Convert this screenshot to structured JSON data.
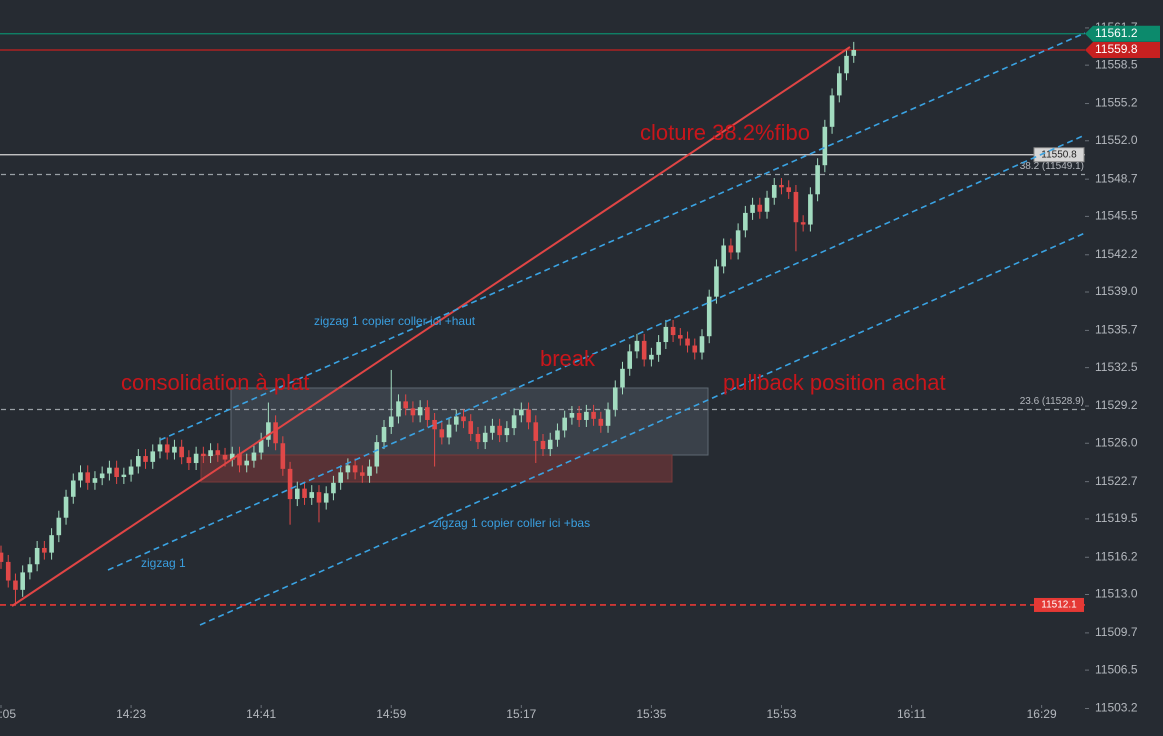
{
  "chart_data": {
    "type": "candlestick",
    "x": [
      "14:05",
      "14:06",
      "14:07",
      "14:08",
      "14:09",
      "14:10",
      "14:11",
      "14:12",
      "14:13",
      "14:14",
      "14:15",
      "14:16",
      "14:17",
      "14:18",
      "14:19",
      "14:20",
      "14:21",
      "14:22",
      "14:23",
      "14:24",
      "14:25",
      "14:26",
      "14:27",
      "14:28",
      "14:29",
      "14:30",
      "14:31",
      "14:32",
      "14:33",
      "14:34",
      "14:35",
      "14:36",
      "14:37",
      "14:38",
      "14:39",
      "14:40",
      "14:41",
      "14:42",
      "14:43",
      "14:44",
      "14:45",
      "14:46",
      "14:47",
      "14:48",
      "14:49",
      "14:50",
      "14:51",
      "14:52",
      "14:53",
      "14:54",
      "14:55",
      "14:56",
      "14:57",
      "14:58",
      "14:59",
      "15:00",
      "15:01",
      "15:02",
      "15:03",
      "15:04",
      "15:05",
      "15:06",
      "15:07",
      "15:08",
      "15:09",
      "15:10",
      "15:11",
      "15:12",
      "15:13",
      "15:14",
      "15:15",
      "15:16",
      "15:17",
      "15:18",
      "15:19",
      "15:20",
      "15:21",
      "15:22",
      "15:23",
      "15:24",
      "15:25",
      "15:26",
      "15:27",
      "15:28",
      "15:29",
      "15:30",
      "15:31",
      "15:32",
      "15:33",
      "15:34",
      "15:35",
      "15:36",
      "15:37",
      "15:38",
      "15:39",
      "15:40",
      "15:41",
      "15:42",
      "15:43",
      "15:44",
      "15:45",
      "15:46",
      "15:47",
      "15:48",
      "15:49",
      "15:50",
      "15:51",
      "15:52",
      "15:53",
      "15:54",
      "15:55",
      "15:56",
      "15:57",
      "15:58",
      "15:59",
      "16:00",
      "16:01",
      "16:02",
      "16:03"
    ],
    "open": [
      11516.6,
      11515.8,
      11514.2,
      11513.4,
      11514.9,
      11515.6,
      11517.0,
      11516.6,
      11518.1,
      11519.6,
      11521.4,
      11522.8,
      11523.5,
      11522.6,
      11523.0,
      11523.4,
      11523.9,
      11523.1,
      11523.3,
      11524.0,
      11524.9,
      11524.4,
      11525.3,
      11525.9,
      11525.2,
      11525.7,
      11524.8,
      11524.3,
      11525.1,
      11524.9,
      11525.4,
      11525.0,
      11524.6,
      11525.1,
      11524.1,
      11524.5,
      11525.2,
      11526.3,
      11527.8,
      11526.0,
      11523.8,
      11521.2,
      11522.1,
      11521.3,
      11521.8,
      11520.9,
      11521.7,
      11522.6,
      11523.5,
      11524.1,
      11523.5,
      11523.2,
      11524.0,
      11526.1,
      11527.4,
      11528.3,
      11529.6,
      11529.0,
      11528.4,
      11529.1,
      11528.0,
      11527.2,
      11526.5,
      11527.6,
      11528.3,
      11527.9,
      11526.8,
      11526.1,
      11526.9,
      11527.5,
      11526.7,
      11527.3,
      11528.4,
      11528.9,
      11527.8,
      11526.2,
      11525.5,
      11526.3,
      11527.1,
      11528.2,
      11528.6,
      11528.0,
      11528.7,
      11528.1,
      11527.5,
      11528.9,
      11530.8,
      11532.4,
      11533.9,
      11534.8,
      11533.2,
      11533.6,
      11534.7,
      11536.0,
      11535.3,
      11535.0,
      11534.4,
      11533.8,
      11535.2,
      11538.6,
      11541.2,
      11543.0,
      11542.4,
      11544.3,
      11545.8,
      11546.5,
      11545.9,
      11547.1,
      11548.2,
      11548.0,
      11547.6,
      11545.0,
      11544.8,
      11547.4,
      11549.9,
      11553.2,
      11555.9,
      11557.8,
      11559.3
    ],
    "high": [
      11517.2,
      11516.4,
      11514.8,
      11515.5,
      11516.2,
      11517.6,
      11517.6,
      11518.7,
      11520.2,
      11522.0,
      11523.4,
      11524.1,
      11524.1,
      11523.6,
      11524.0,
      11524.5,
      11524.5,
      11523.9,
      11524.6,
      11525.5,
      11525.5,
      11525.9,
      11526.5,
      11526.5,
      11526.3,
      11526.3,
      11525.4,
      11525.7,
      11525.7,
      11526.0,
      11526.0,
      11525.6,
      11525.7,
      11525.7,
      11525.1,
      11525.8,
      11526.9,
      11529.5,
      11528.4,
      11526.6,
      11524.4,
      11522.7,
      11522.7,
      11522.4,
      11522.4,
      11522.3,
      11523.2,
      11524.1,
      11524.7,
      11524.7,
      11524.1,
      11524.6,
      11526.7,
      11528.0,
      11532.3,
      11530.2,
      11530.2,
      11529.6,
      11529.7,
      11529.7,
      11528.6,
      11527.8,
      11528.2,
      11528.9,
      11528.9,
      11528.5,
      11527.4,
      11527.5,
      11528.1,
      11528.1,
      11527.9,
      11529.0,
      11529.5,
      11529.5,
      11528.4,
      11526.8,
      11526.9,
      11527.7,
      11528.8,
      11529.2,
      11529.2,
      11529.3,
      11529.3,
      11528.7,
      11529.5,
      11531.4,
      11533.0,
      11534.5,
      11535.4,
      11535.4,
      11534.2,
      11535.3,
      11536.6,
      11536.6,
      11535.9,
      11535.6,
      11535.0,
      11535.8,
      11539.2,
      11541.8,
      11543.6,
      11543.6,
      11544.9,
      11546.4,
      11547.1,
      11547.1,
      11547.7,
      11548.8,
      11548.8,
      11548.6,
      11548.2,
      11545.6,
      11548.0,
      11550.5,
      11553.8,
      11556.5,
      11558.4,
      11559.9,
      11560.5
    ],
    "low": [
      11515.2,
      11513.6,
      11512.1,
      11512.8,
      11514.3,
      11515.0,
      11516.0,
      11516.0,
      11517.5,
      11519.0,
      11520.8,
      11522.2,
      11522.0,
      11522.0,
      11522.4,
      11522.8,
      11522.5,
      11522.5,
      11522.7,
      11523.4,
      11523.8,
      11523.8,
      11524.7,
      11524.6,
      11524.6,
      11524.2,
      11523.7,
      11523.7,
      11524.3,
      11524.3,
      11524.4,
      11524.0,
      11524.0,
      11523.5,
      11523.5,
      11523.9,
      11524.6,
      11525.7,
      11525.4,
      11523.2,
      11519.0,
      11520.6,
      11520.7,
      11520.7,
      11519.2,
      11520.3,
      11521.1,
      11522.0,
      11522.9,
      11522.9,
      11522.6,
      11522.6,
      11523.4,
      11525.5,
      11526.8,
      11527.7,
      11528.4,
      11527.8,
      11527.8,
      11527.4,
      11524.0,
      11525.9,
      11525.9,
      11527.0,
      11527.3,
      11526.2,
      11525.5,
      11525.5,
      11526.3,
      11526.1,
      11526.1,
      11526.7,
      11527.8,
      11527.2,
      11524.3,
      11524.9,
      11524.9,
      11525.7,
      11526.5,
      11527.6,
      11527.4,
      11527.4,
      11527.5,
      11526.9,
      11526.9,
      11528.3,
      11530.2,
      11531.8,
      11533.3,
      11532.6,
      11532.6,
      11533.0,
      11534.1,
      11534.7,
      11534.4,
      11533.8,
      11533.2,
      11533.2,
      11534.6,
      11538.0,
      11540.6,
      11541.8,
      11541.8,
      11543.7,
      11545.2,
      11545.3,
      11545.3,
      11546.5,
      11547.4,
      11547.0,
      11542.5,
      11544.2,
      11544.2,
      11546.8,
      11549.3,
      11552.6,
      11555.3,
      11557.2,
      11558.7
    ],
    "close": [
      11515.8,
      11514.2,
      11513.4,
      11514.9,
      11515.6,
      11517.0,
      11516.6,
      11518.1,
      11519.6,
      11521.4,
      11522.8,
      11523.5,
      11522.6,
      11523.0,
      11523.4,
      11523.9,
      11523.1,
      11523.3,
      11524.0,
      11524.9,
      11524.4,
      11525.3,
      11525.9,
      11525.2,
      11525.7,
      11524.8,
      11524.3,
      11525.1,
      11524.9,
      11525.4,
      11525.0,
      11524.6,
      11525.1,
      11524.1,
      11524.5,
      11525.2,
      11526.3,
      11527.8,
      11526.0,
      11523.8,
      11521.2,
      11522.1,
      11521.3,
      11521.8,
      11520.9,
      11521.7,
      11522.6,
      11523.5,
      11524.1,
      11523.5,
      11523.2,
      11524.0,
      11526.1,
      11527.4,
      11528.3,
      11529.6,
      11529.0,
      11528.4,
      11529.1,
      11528.0,
      11527.2,
      11526.5,
      11527.6,
      11528.3,
      11527.9,
      11526.8,
      11526.1,
      11526.9,
      11527.5,
      11526.7,
      11527.3,
      11528.4,
      11528.9,
      11527.8,
      11526.2,
      11525.5,
      11526.3,
      11527.1,
      11528.2,
      11528.6,
      11528.0,
      11528.7,
      11528.1,
      11527.5,
      11528.9,
      11530.8,
      11532.4,
      11533.9,
      11534.8,
      11533.2,
      11533.6,
      11534.7,
      11536.0,
      11535.3,
      11535.0,
      11534.4,
      11533.8,
      11535.2,
      11538.6,
      11541.2,
      11543.0,
      11542.4,
      11544.3,
      11545.8,
      11546.5,
      11545.9,
      11547.1,
      11548.2,
      11548.0,
      11547.6,
      11545.0,
      11544.8,
      11547.4,
      11549.9,
      11553.2,
      11555.9,
      11557.8,
      11559.3,
      11559.8
    ],
    "up_color": "#a3dcc0",
    "down_color": "#e04848",
    "xlim": [
      "14:05",
      "16:35"
    ],
    "xticks": [
      "14:05",
      "14:23",
      "14:41",
      "14:59",
      "15:17",
      "15:35",
      "15:53",
      "16:11",
      "16:29"
    ],
    "ylim": [
      11502.9,
      11564.1
    ],
    "yticks": [
      11503.2,
      11506.5,
      11509.7,
      {
        "value": 11513,
        "label": "11513.0"
      },
      11516.2,
      11519.5,
      11522.7,
      {
        "value": 11526,
        "label": "11526.0"
      },
      11529.2,
      11532.5,
      11535.7,
      {
        "value": 11539,
        "label": "11539.0"
      },
      11542.2,
      11545.5,
      11548.7,
      {
        "value": 11552,
        "label": "11552.0"
      },
      11555.2,
      11558.5,
      11561.7
    ],
    "levels": [
      {
        "value": 11561.2,
        "color": "#0c8a6c",
        "style": "solid",
        "tag_on_axis": true
      },
      {
        "value": 11559.8,
        "color": "#c62020",
        "style": "solid",
        "tag_on_axis": true
      },
      {
        "value": 11550.8,
        "color": "#d6d6d6",
        "style": "solid",
        "tag_on_axis": false
      },
      {
        "value": 11512.1,
        "color": "#e53935",
        "style": "dashed",
        "tag_on_axis": false
      }
    ],
    "fib_levels": [
      {
        "value": 11549.1,
        "label": "38.2 (11549.1)"
      },
      {
        "value": 11528.9,
        "label": "23.6 (11528.9)"
      }
    ],
    "annotations": [
      "cloture 38.2%fibo",
      "consolidation à plat",
      "break",
      "pullback position achat",
      "zigzag 1 copier coller ici +haut",
      "zigzag 1 copier coller ici +bas",
      "zigzag 1"
    ]
  }
}
